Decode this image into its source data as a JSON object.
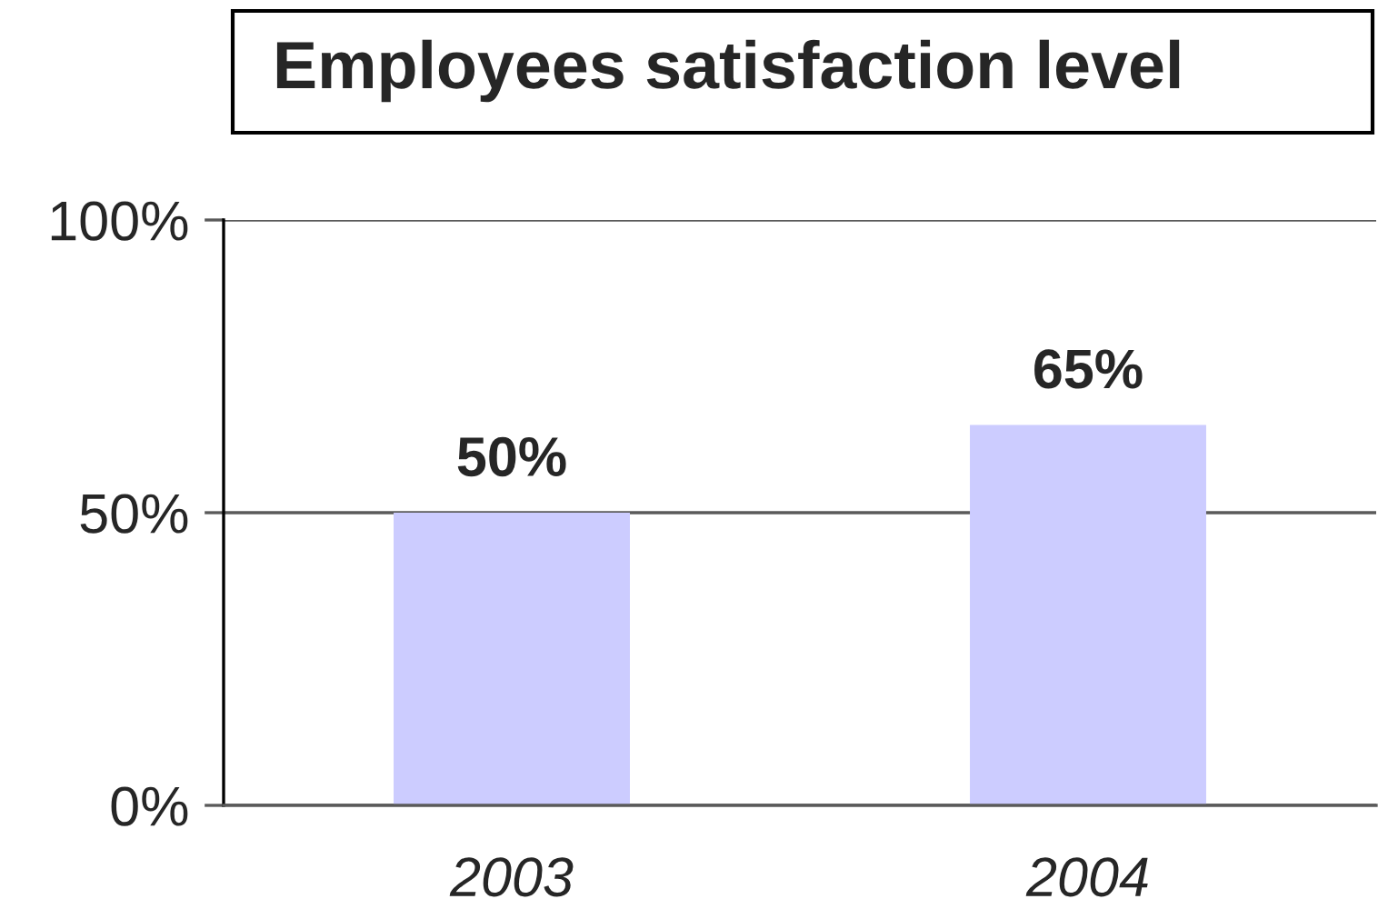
{
  "chart_data": {
    "type": "bar",
    "title": "Employees satisfaction level",
    "categories": [
      "2003",
      "2004"
    ],
    "values": [
      50,
      65
    ],
    "value_labels": [
      "50%",
      "65%"
    ],
    "color": "#ccccff",
    "ylim": [
      0,
      100
    ],
    "yticks": [
      {
        "value": 0,
        "label": "0%"
      },
      {
        "value": 50,
        "label": "50%"
      },
      {
        "value": 100,
        "label": "100%"
      }
    ],
    "grid": "y"
  }
}
